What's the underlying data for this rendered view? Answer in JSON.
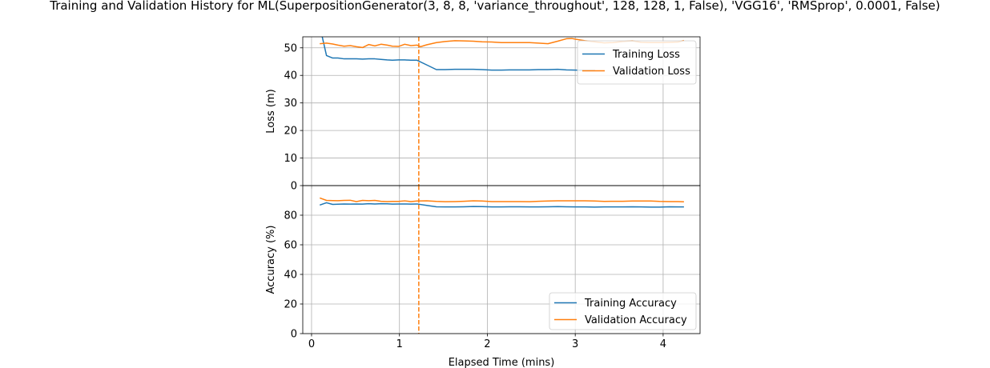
{
  "figure": {
    "title": "Training and Validation History for ML(SuperpositionGenerator(3, 8, 8, 'variance_throughout', 128, 128, 1, False), 'VGG16', 'RMSprop', 0.0001, False)"
  },
  "chart_data": [
    {
      "type": "line",
      "xlim": [
        -0.1,
        4.42
      ],
      "ylim": [
        0,
        54
      ],
      "xticks": [
        0,
        1,
        2,
        3,
        4
      ],
      "yticks": [
        0,
        10,
        20,
        30,
        40,
        50
      ],
      "xtick_labels": [
        "",
        "",
        "",
        "",
        ""
      ],
      "ytick_labels": [
        "0",
        "10",
        "20",
        "30",
        "40",
        "50"
      ],
      "xlabel": "",
      "ylabel": "Loss (m)",
      "grid": true,
      "legend_position": "top-right",
      "vertical_marker": {
        "x": 1.22,
        "color": "#ff7f0e",
        "style": "dashed"
      },
      "series": [
        {
          "name": "Training Loss",
          "color": "#1f77b4",
          "x": [
            0.1,
            0.17,
            0.24,
            0.3,
            0.37,
            0.44,
            0.51,
            0.58,
            0.65,
            0.72,
            0.79,
            0.86,
            0.92,
            0.99,
            1.06,
            1.13,
            1.2,
            1.31,
            1.42,
            1.52,
            1.63,
            1.73,
            1.84,
            1.94,
            2.05,
            2.16,
            2.26,
            2.37,
            2.48,
            2.58,
            2.69,
            2.8,
            2.9,
            3.01,
            3.11,
            3.22
          ],
          "values": [
            57.0,
            47.2,
            46.3,
            46.3,
            46.0,
            46.0,
            46.0,
            45.9,
            46.0,
            46.0,
            45.8,
            45.6,
            45.5,
            45.6,
            45.6,
            45.5,
            45.5,
            43.8,
            42.1,
            42.1,
            42.2,
            42.2,
            42.2,
            42.1,
            41.9,
            41.9,
            42.0,
            42.0,
            42.0,
            42.1,
            42.1,
            42.2,
            42.0,
            41.9,
            41.8,
            41.8
          ]
        },
        {
          "name": "Validation Loss",
          "color": "#ff7f0e",
          "x": [
            0.1,
            0.17,
            0.24,
            0.3,
            0.37,
            0.44,
            0.51,
            0.58,
            0.65,
            0.72,
            0.79,
            0.86,
            0.92,
            0.99,
            1.06,
            1.13,
            1.2,
            1.24,
            1.31,
            1.42,
            1.52,
            1.63,
            1.73,
            1.84,
            1.94,
            2.05,
            2.16,
            2.26,
            2.37,
            2.48,
            2.58,
            2.69,
            2.8,
            2.9,
            2.96,
            3.01,
            3.11,
            3.22,
            3.33,
            3.43,
            3.54,
            3.65,
            3.75,
            3.86,
            3.96,
            4.07,
            4.17,
            4.23
          ],
          "values": [
            51.5,
            51.7,
            51.4,
            51.0,
            50.6,
            50.8,
            50.4,
            50.1,
            51.2,
            50.7,
            51.3,
            51.0,
            50.6,
            50.5,
            51.3,
            50.8,
            51.0,
            50.4,
            51.1,
            51.9,
            52.3,
            52.6,
            52.5,
            52.4,
            52.2,
            52.1,
            51.9,
            51.9,
            51.9,
            51.9,
            51.7,
            51.5,
            52.4,
            53.3,
            53.4,
            53.1,
            52.6,
            52.2,
            51.8,
            51.9,
            52.3,
            52.5,
            52.0,
            51.9,
            51.9,
            52.0,
            52.1,
            52.6
          ]
        }
      ]
    },
    {
      "type": "line",
      "xlim": [
        -0.1,
        4.42
      ],
      "ylim": [
        0,
        100
      ],
      "xticks": [
        0,
        1,
        2,
        3,
        4
      ],
      "yticks": [
        0,
        20,
        40,
        60,
        80
      ],
      "xtick_labels": [
        "0",
        "1",
        "2",
        "3",
        "4"
      ],
      "ytick_labels": [
        "0",
        "20",
        "40",
        "60",
        "80"
      ],
      "xlabel": "Elapsed Time (mins)",
      "ylabel": "Accuracy (%)",
      "grid": true,
      "legend_position": "bottom-right",
      "vertical_marker": {
        "x": 1.22,
        "color": "#ff7f0e",
        "style": "dashed"
      },
      "series": [
        {
          "name": "Training Accuracy",
          "color": "#1f77b4",
          "x": [
            0.1,
            0.17,
            0.24,
            0.3,
            0.37,
            0.44,
            0.51,
            0.58,
            0.65,
            0.72,
            0.79,
            0.86,
            0.92,
            0.99,
            1.06,
            1.13,
            1.2,
            1.31,
            1.42,
            1.52,
            1.63,
            1.73,
            1.84,
            1.94,
            2.05,
            2.16,
            2.26,
            2.37,
            2.48,
            2.58,
            2.69,
            2.8,
            2.9,
            3.01,
            3.11,
            3.22,
            3.33,
            3.43,
            3.54,
            3.65,
            3.75,
            3.86,
            3.96,
            4.07,
            4.17,
            4.23
          ],
          "values": [
            87.0,
            88.4,
            87.3,
            87.4,
            87.6,
            87.5,
            87.6,
            87.5,
            87.8,
            87.6,
            87.8,
            87.7,
            87.5,
            87.6,
            87.6,
            87.5,
            87.6,
            86.6,
            85.7,
            85.6,
            85.6,
            85.7,
            85.9,
            85.8,
            85.6,
            85.6,
            85.7,
            85.7,
            85.6,
            85.6,
            85.7,
            85.8,
            85.7,
            85.6,
            85.6,
            85.5,
            85.6,
            85.6,
            85.6,
            85.7,
            85.6,
            85.5,
            85.5,
            85.7,
            85.6,
            85.6
          ]
        },
        {
          "name": "Validation Accuracy",
          "color": "#ff7f0e",
          "x": [
            0.1,
            0.17,
            0.24,
            0.3,
            0.37,
            0.44,
            0.51,
            0.58,
            0.65,
            0.72,
            0.79,
            0.86,
            0.92,
            0.99,
            1.06,
            1.13,
            1.2,
            1.31,
            1.42,
            1.52,
            1.63,
            1.73,
            1.84,
            1.94,
            2.05,
            2.16,
            2.26,
            2.37,
            2.48,
            2.58,
            2.69,
            2.8,
            2.9,
            3.01,
            3.11,
            3.22,
            3.33,
            3.43,
            3.54,
            3.65,
            3.75,
            3.86,
            3.96,
            4.07,
            4.17,
            4.23
          ],
          "values": [
            91.5,
            90.0,
            89.9,
            89.8,
            90.0,
            90.1,
            89.2,
            90.0,
            89.8,
            90.0,
            89.4,
            89.2,
            89.3,
            89.3,
            89.7,
            89.2,
            89.6,
            89.7,
            89.3,
            89.1,
            89.2,
            89.4,
            89.7,
            89.6,
            89.2,
            89.2,
            89.2,
            89.2,
            89.1,
            89.4,
            89.6,
            89.7,
            89.7,
            89.7,
            89.7,
            89.6,
            89.3,
            89.4,
            89.4,
            89.6,
            89.6,
            89.6,
            89.3,
            89.2,
            89.2,
            89.1
          ]
        }
      ]
    }
  ]
}
